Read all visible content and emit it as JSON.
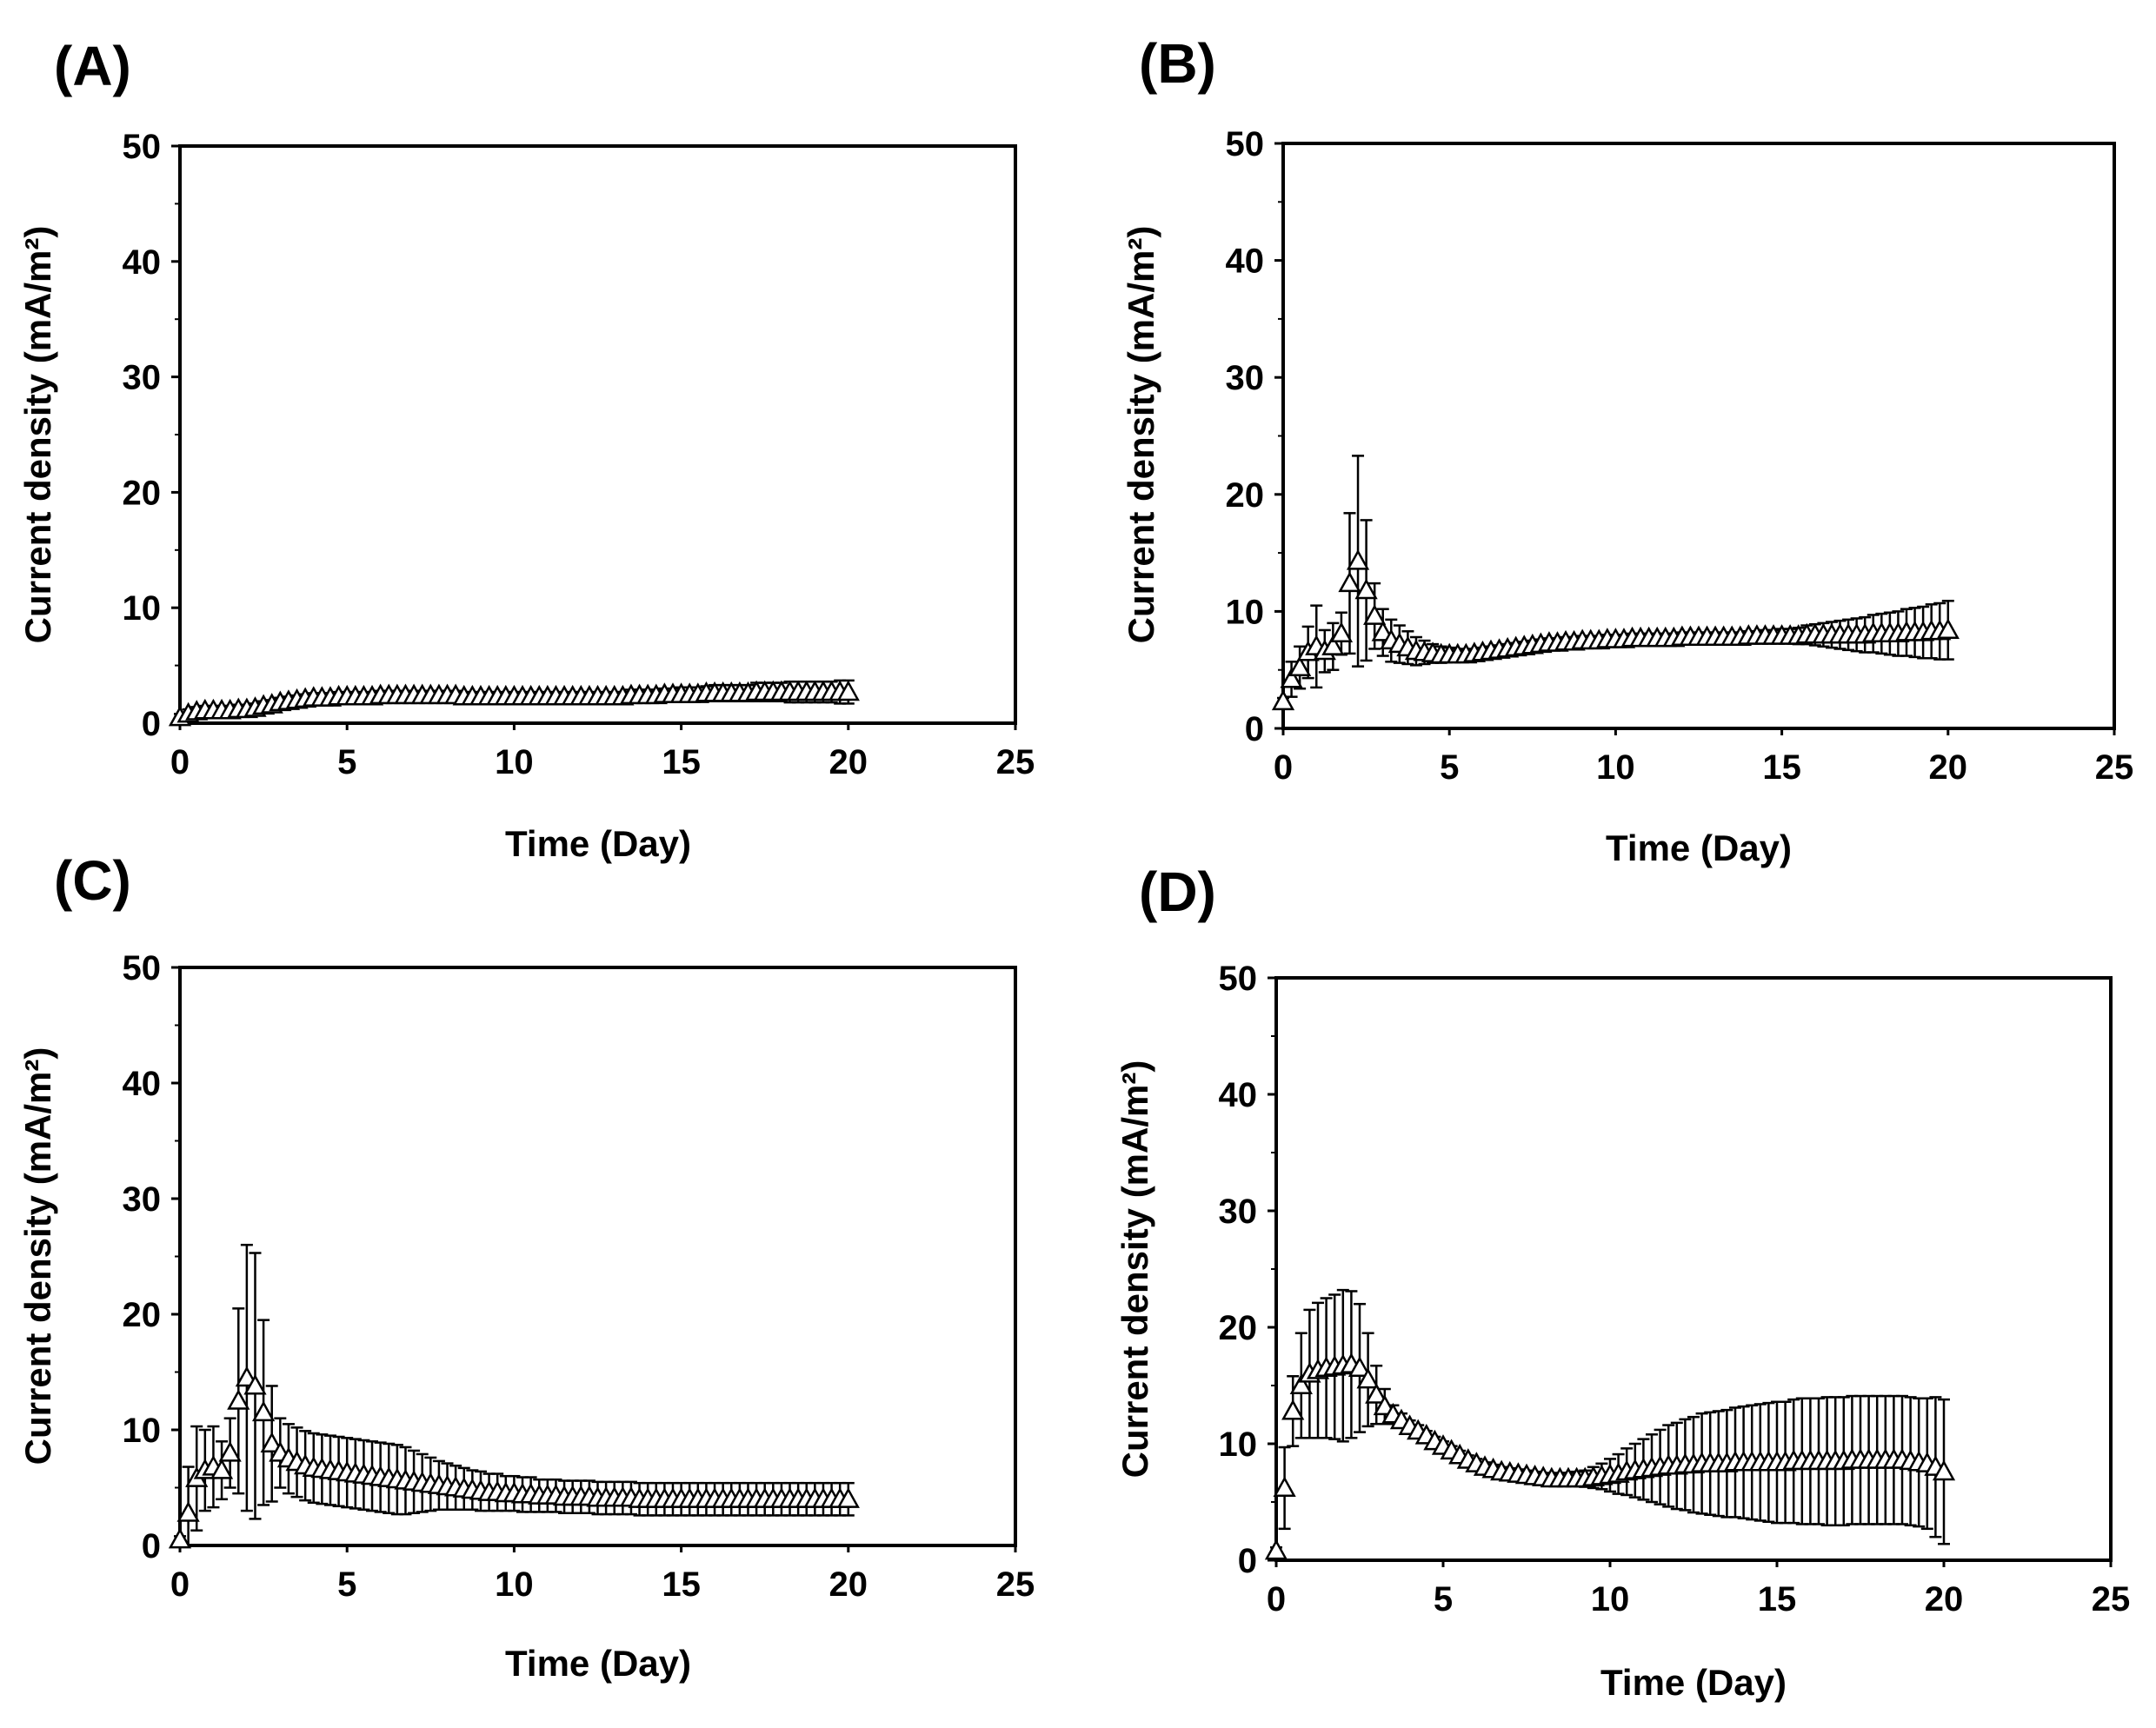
{
  "figure": {
    "panel_count": 4,
    "marker": "open-triangle",
    "line_color": "#000000",
    "background": "#ffffff"
  },
  "chart_data": [
    {
      "type": "scatter",
      "panel_label": "(A)",
      "xlabel": "Time (Day)",
      "ylabel": "Current density (mA/m²)",
      "xlim": [
        0,
        25
      ],
      "ylim": [
        0,
        50
      ],
      "xticks": [
        0,
        5,
        10,
        15,
        20,
        25
      ],
      "yticks": [
        0,
        10,
        20,
        30,
        40,
        50
      ],
      "x": [
        0,
        0.25,
        0.5,
        0.75,
        1,
        1.25,
        1.5,
        1.75,
        2,
        2.25,
        2.5,
        2.75,
        3,
        3.25,
        3.5,
        3.75,
        4,
        4.25,
        4.5,
        4.75,
        5,
        5.25,
        5.5,
        5.75,
        6,
        6.25,
        6.5,
        6.75,
        7,
        7.25,
        7.5,
        7.75,
        8,
        8.25,
        8.5,
        8.75,
        9,
        9.25,
        9.5,
        9.75,
        10,
        10.25,
        10.5,
        10.75,
        11,
        11.25,
        11.5,
        11.75,
        12,
        12.25,
        12.5,
        12.75,
        13,
        13.25,
        13.5,
        13.75,
        14,
        14.25,
        14.5,
        14.75,
        15,
        15.25,
        15.5,
        15.75,
        16,
        16.25,
        16.5,
        16.75,
        17,
        17.25,
        17.5,
        17.75,
        18,
        18.25,
        18.5,
        18.75,
        19,
        19.25,
        19.5,
        19.75,
        20
      ],
      "y": [
        0.5,
        0.8,
        1,
        1.1,
        1.1,
        1.1,
        1.1,
        1.2,
        1.2,
        1.3,
        1.5,
        1.6,
        1.8,
        1.9,
        2,
        2.1,
        2.2,
        2.2,
        2.2,
        2.3,
        2.3,
        2.3,
        2.3,
        2.3,
        2.4,
        2.4,
        2.4,
        2.4,
        2.4,
        2.4,
        2.4,
        2.4,
        2.4,
        2.4,
        2.3,
        2.3,
        2.3,
        2.3,
        2.3,
        2.3,
        2.3,
        2.3,
        2.3,
        2.3,
        2.3,
        2.3,
        2.3,
        2.3,
        2.3,
        2.3,
        2.3,
        2.3,
        2.3,
        2.3,
        2.4,
        2.4,
        2.4,
        2.4,
        2.5,
        2.5,
        2.5,
        2.5,
        2.5,
        2.6,
        2.6,
        2.6,
        2.6,
        2.6,
        2.6,
        2.7,
        2.7,
        2.7,
        2.7,
        2.7,
        2.7,
        2.7,
        2.7,
        2.7,
        2.7,
        2.7,
        2.7
      ],
      "error": [
        0.3,
        0.4,
        0.4,
        0.4,
        0.4,
        0.4,
        0.4,
        0.4,
        0.4,
        0.4,
        0.4,
        0.4,
        0.4,
        0.4,
        0.4,
        0.4,
        0.4,
        0.4,
        0.4,
        0.4,
        0.4,
        0.4,
        0.4,
        0.4,
        0.4,
        0.4,
        0.4,
        0.4,
        0.4,
        0.4,
        0.4,
        0.4,
        0.4,
        0.4,
        0.4,
        0.4,
        0.4,
        0.4,
        0.4,
        0.4,
        0.4,
        0.4,
        0.4,
        0.4,
        0.4,
        0.4,
        0.4,
        0.4,
        0.4,
        0.4,
        0.4,
        0.4,
        0.4,
        0.4,
        0.5,
        0.5,
        0.5,
        0.5,
        0.5,
        0.5,
        0.6,
        0.6,
        0.6,
        0.6,
        0.7,
        0.7,
        0.7,
        0.7,
        0.7,
        0.8,
        0.8,
        0.8,
        0.8,
        0.9,
        0.9,
        0.9,
        0.9,
        0.9,
        0.9,
        1,
        1
      ]
    },
    {
      "type": "scatter",
      "panel_label": "(B)",
      "xlabel": "Time (Day)",
      "ylabel": "Current density (mA/m²)",
      "xlim": [
        0,
        25
      ],
      "ylim": [
        0,
        50
      ],
      "xticks": [
        0,
        5,
        10,
        15,
        20,
        25
      ],
      "yticks": [
        0,
        10,
        20,
        30,
        40,
        50
      ],
      "x": [
        0,
        0.25,
        0.5,
        0.75,
        1,
        1.25,
        1.5,
        1.75,
        2,
        2.25,
        2.5,
        2.75,
        3,
        3.25,
        3.5,
        3.75,
        4,
        4.25,
        4.5,
        4.75,
        5,
        5.25,
        5.5,
        5.75,
        6,
        6.25,
        6.5,
        6.75,
        7,
        7.25,
        7.5,
        7.75,
        8,
        8.25,
        8.5,
        8.75,
        9,
        9.25,
        9.5,
        9.75,
        10,
        10.25,
        10.5,
        10.75,
        11,
        11.25,
        11.5,
        11.75,
        12,
        12.25,
        12.5,
        12.75,
        13,
        13.25,
        13.5,
        13.75,
        14,
        14.25,
        14.5,
        14.75,
        15,
        15.25,
        15.5,
        15.75,
        16,
        16.25,
        16.5,
        16.75,
        17,
        17.25,
        17.5,
        17.75,
        18,
        18.25,
        18.5,
        18.75,
        19,
        19.25,
        19.5,
        19.75,
        20
      ],
      "y": [
        2.3,
        4.2,
        5.2,
        6.5,
        7,
        6.6,
        7,
        8.1,
        12.4,
        14.3,
        11.8,
        9.6,
        8.2,
        7.5,
        7.2,
        6.9,
        6.6,
        6.5,
        6.4,
        6.3,
        6.3,
        6.3,
        6.3,
        6.4,
        6.5,
        6.6,
        6.7,
        6.8,
        6.9,
        7,
        7.1,
        7.2,
        7.3,
        7.3,
        7.4,
        7.4,
        7.5,
        7.5,
        7.5,
        7.6,
        7.6,
        7.6,
        7.7,
        7.7,
        7.7,
        7.7,
        7.7,
        7.7,
        7.8,
        7.8,
        7.8,
        7.8,
        7.8,
        7.8,
        7.8,
        7.8,
        7.9,
        7.9,
        7.9,
        7.9,
        7.9,
        7.9,
        7.9,
        8,
        8,
        8,
        8,
        8,
        8,
        8,
        8,
        8.1,
        8.1,
        8.1,
        8.1,
        8.2,
        8.2,
        8.2,
        8.3,
        8.3,
        8.4
      ],
      "error": [
        0.3,
        1.5,
        1.8,
        2.2,
        3.5,
        1.8,
        2,
        1.8,
        6,
        9,
        6,
        2.8,
        2,
        1.8,
        1.6,
        1.4,
        1.2,
        1,
        0.8,
        0.7,
        0.6,
        0.5,
        0.4,
        0.4,
        0.4,
        0.4,
        0.4,
        0.4,
        0.4,
        0.4,
        0.4,
        0.4,
        0.4,
        0.4,
        0.4,
        0.4,
        0.4,
        0.4,
        0.4,
        0.4,
        0.4,
        0.4,
        0.4,
        0.4,
        0.4,
        0.4,
        0.4,
        0.4,
        0.4,
        0.4,
        0.4,
        0.4,
        0.4,
        0.4,
        0.4,
        0.4,
        0.4,
        0.4,
        0.5,
        0.5,
        0.6,
        0.6,
        0.7,
        0.8,
        0.9,
        1,
        1.1,
        1.2,
        1.3,
        1.4,
        1.5,
        1.6,
        1.7,
        1.8,
        1.9,
        2,
        2.1,
        2.2,
        2.3,
        2.4,
        2.5
      ]
    },
    {
      "type": "scatter",
      "panel_label": "(C)",
      "xlabel": "Time (Day)",
      "ylabel": "Current density (mA/m²)",
      "xlim": [
        0,
        25
      ],
      "ylim": [
        0,
        50
      ],
      "xticks": [
        0,
        5,
        10,
        15,
        20,
        25
      ],
      "yticks": [
        0,
        10,
        20,
        30,
        40,
        50
      ],
      "x": [
        0,
        0.25,
        0.5,
        0.75,
        1,
        1.25,
        1.5,
        1.75,
        2,
        2.25,
        2.5,
        2.75,
        3,
        3.25,
        3.5,
        3.75,
        4,
        4.25,
        4.5,
        4.75,
        5,
        5.25,
        5.5,
        5.75,
        6,
        6.25,
        6.5,
        6.75,
        7,
        7.25,
        7.5,
        7.75,
        8,
        8.25,
        8.5,
        8.75,
        9,
        9.25,
        9.5,
        9.75,
        10,
        10.25,
        10.5,
        10.75,
        11,
        11.25,
        11.5,
        11.75,
        12,
        12.25,
        12.5,
        12.75,
        13,
        13.25,
        13.5,
        13.75,
        14,
        14.25,
        14.5,
        14.75,
        15,
        15.25,
        15.5,
        15.75,
        16,
        16.25,
        16.5,
        16.75,
        17,
        17.25,
        17.5,
        17.75,
        18,
        18.25,
        18.5,
        18.75,
        19,
        19.25,
        19.5,
        19.75,
        20
      ],
      "y": [
        0.5,
        2.8,
        5.8,
        6.5,
        6.8,
        6.5,
        8,
        12.5,
        14.5,
        13.8,
        11.5,
        8.8,
        8,
        7.5,
        7.2,
        6.9,
        6.7,
        6.6,
        6.5,
        6.4,
        6.3,
        6.2,
        6.1,
        6,
        5.9,
        5.8,
        5.7,
        5.6,
        5.5,
        5.4,
        5.3,
        5.2,
        5.1,
        5,
        4.9,
        4.8,
        4.7,
        4.6,
        4.6,
        4.5,
        4.5,
        4.4,
        4.4,
        4.3,
        4.3,
        4.3,
        4.2,
        4.2,
        4.2,
        4.2,
        4.1,
        4.1,
        4.1,
        4.1,
        4.1,
        4,
        4,
        4,
        4,
        4,
        4,
        4,
        4,
        4,
        4,
        4,
        4,
        4,
        4,
        4,
        4,
        4,
        4,
        4,
        4,
        4,
        4,
        4,
        4,
        4,
        4
      ],
      "error": [
        0.3,
        4,
        4.5,
        3.5,
        3.5,
        2.5,
        3,
        8,
        11.5,
        11.5,
        8,
        5,
        3,
        3,
        3,
        3,
        3,
        3,
        3,
        3,
        3,
        3,
        3,
        3,
        3,
        3,
        3,
        2.9,
        2.7,
        2.5,
        2.3,
        2.1,
        2,
        1.9,
        1.8,
        1.7,
        1.7,
        1.6,
        1.6,
        1.5,
        1.5,
        1.5,
        1.5,
        1.4,
        1.4,
        1.4,
        1.4,
        1.4,
        1.4,
        1.4,
        1.4,
        1.4,
        1.4,
        1.4,
        1.4,
        1.4,
        1.4,
        1.4,
        1.4,
        1.4,
        1.4,
        1.4,
        1.4,
        1.4,
        1.4,
        1.4,
        1.4,
        1.4,
        1.4,
        1.4,
        1.4,
        1.4,
        1.4,
        1.4,
        1.4,
        1.4,
        1.4,
        1.4,
        1.4,
        1.4,
        1.4
      ]
    },
    {
      "type": "scatter",
      "panel_label": "(D)",
      "xlabel": "Time (Day)",
      "ylabel": "Current density (mA/m²)",
      "xlim": [
        0,
        25
      ],
      "ylim": [
        0,
        50
      ],
      "xticks": [
        0,
        5,
        10,
        15,
        20,
        25
      ],
      "yticks": [
        0,
        10,
        20,
        30,
        40,
        50
      ],
      "x": [
        0,
        0.25,
        0.5,
        0.75,
        1,
        1.25,
        1.5,
        1.75,
        2,
        2.25,
        2.5,
        2.75,
        3,
        3.25,
        3.5,
        3.75,
        4,
        4.25,
        4.5,
        4.75,
        5,
        5.25,
        5.5,
        5.75,
        6,
        6.25,
        6.5,
        6.75,
        7,
        7.25,
        7.5,
        7.75,
        8,
        8.25,
        8.5,
        8.75,
        9,
        9.25,
        9.5,
        9.75,
        10,
        10.25,
        10.5,
        10.75,
        11,
        11.25,
        11.5,
        11.75,
        12,
        12.25,
        12.5,
        12.75,
        13,
        13.25,
        13.5,
        13.75,
        14,
        14.25,
        14.5,
        14.75,
        15,
        15.25,
        15.5,
        15.75,
        16,
        16.25,
        16.5,
        16.75,
        17,
        17.25,
        17.5,
        17.75,
        18,
        18.25,
        18.5,
        18.75,
        19,
        19.25,
        19.5,
        19.75,
        20
      ],
      "y": [
        0.8,
        6.2,
        12.8,
        15,
        16,
        16.3,
        16.5,
        16.6,
        16.7,
        16.8,
        16.5,
        15.5,
        14.2,
        13.2,
        12.5,
        12,
        11.5,
        11.1,
        10.7,
        10.2,
        9.8,
        9.4,
        9,
        8.6,
        8.3,
        8,
        7.8,
        7.6,
        7.5,
        7.4,
        7.3,
        7.2,
        7.1,
        7,
        7,
        7,
        7,
        7,
        7.1,
        7.2,
        7.3,
        7.4,
        7.6,
        7.7,
        7.8,
        7.9,
        8,
        8.1,
        8.1,
        8.2,
        8.2,
        8.3,
        8.3,
        8.3,
        8.3,
        8.4,
        8.4,
        8.4,
        8.4,
        8.4,
        8.4,
        8.4,
        8.5,
        8.5,
        8.5,
        8.5,
        8.5,
        8.5,
        8.5,
        8.6,
        8.6,
        8.6,
        8.6,
        8.6,
        8.6,
        8.6,
        8.5,
        8.4,
        8.3,
        8,
        7.6
      ],
      "error": [
        0.3,
        3.5,
        3,
        4.5,
        5.5,
        5.8,
        6,
        6.2,
        6.5,
        6.3,
        5.5,
        4,
        2.5,
        1.5,
        0.8,
        0.6,
        0.5,
        0.5,
        0.4,
        0.4,
        0.4,
        0.4,
        0.4,
        0.4,
        0.4,
        0.4,
        0.4,
        0.4,
        0.4,
        0.4,
        0.4,
        0.4,
        0.4,
        0.4,
        0.5,
        0.5,
        0.6,
        0.7,
        0.9,
        1.1,
        1.4,
        1.7,
        2,
        2.3,
        2.6,
        2.9,
        3.2,
        3.5,
        3.7,
        3.9,
        4.1,
        4.3,
        4.4,
        4.5,
        4.6,
        4.7,
        4.8,
        4.9,
        5,
        5.1,
        5.2,
        5.2,
        5.3,
        5.4,
        5.4,
        5.4,
        5.5,
        5.5,
        5.5,
        5.5,
        5.5,
        5.5,
        5.5,
        5.5,
        5.5,
        5.5,
        5.5,
        5.5,
        5.6,
        6,
        6.2
      ]
    }
  ]
}
